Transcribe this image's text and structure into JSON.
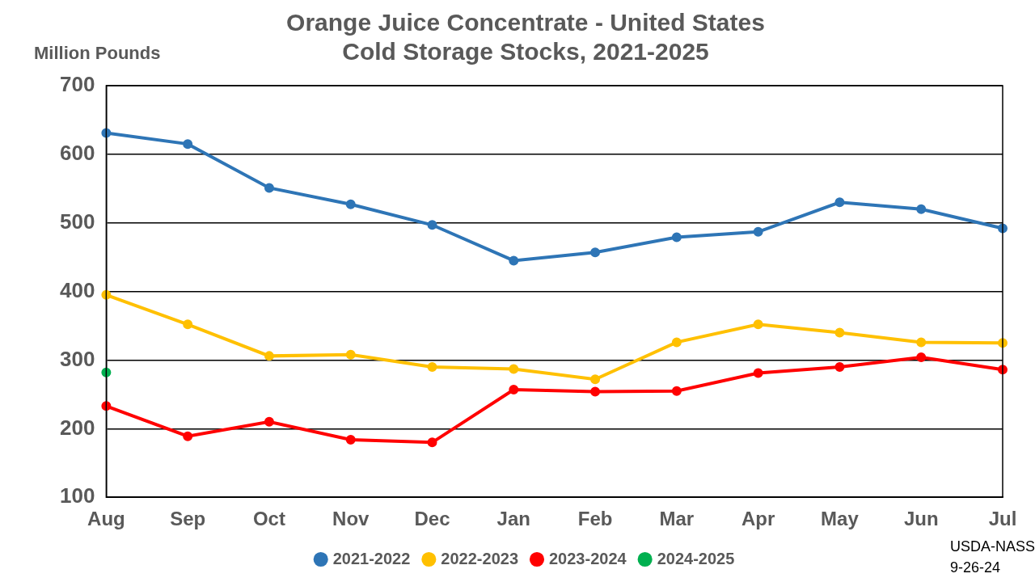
{
  "chart_data": {
    "type": "line",
    "title": [
      "Orange Juice Concentrate - United States",
      "Cold Storage Stocks, 2021-2025"
    ],
    "y_label": "Million Pounds",
    "annotations": [
      "USDA-NASS",
      "9-26-24"
    ],
    "categories": [
      "Aug",
      "Sep",
      "Oct",
      "Nov",
      "Dec",
      "Jan",
      "Feb",
      "Mar",
      "Apr",
      "May",
      "Jun",
      "Jul"
    ],
    "series": [
      {
        "name": "2021-2022",
        "color": "#2E75B6",
        "values": [
          631,
          615,
          551,
          527,
          497,
          445,
          457,
          479,
          487,
          530,
          520,
          492
        ]
      },
      {
        "name": "2022-2023",
        "color": "#FFC000",
        "values": [
          395,
          352,
          306,
          308,
          290,
          287,
          272,
          326,
          352,
          340,
          326,
          325
        ]
      },
      {
        "name": "2023-2024",
        "color": "#FF0000",
        "values": [
          233,
          189,
          210,
          184,
          180,
          257,
          254,
          255,
          281,
          290,
          304,
          286
        ]
      },
      {
        "name": "2024-2025",
        "color": "#00B050",
        "values": [
          282,
          null,
          null,
          null,
          null,
          null,
          null,
          null,
          null,
          null,
          null,
          null
        ]
      }
    ],
    "ylim": [
      100,
      700
    ],
    "yticks": [
      100,
      200,
      300,
      400,
      500,
      600,
      700
    ],
    "grid": true,
    "legend": "bottom",
    "marker": "circle"
  }
}
